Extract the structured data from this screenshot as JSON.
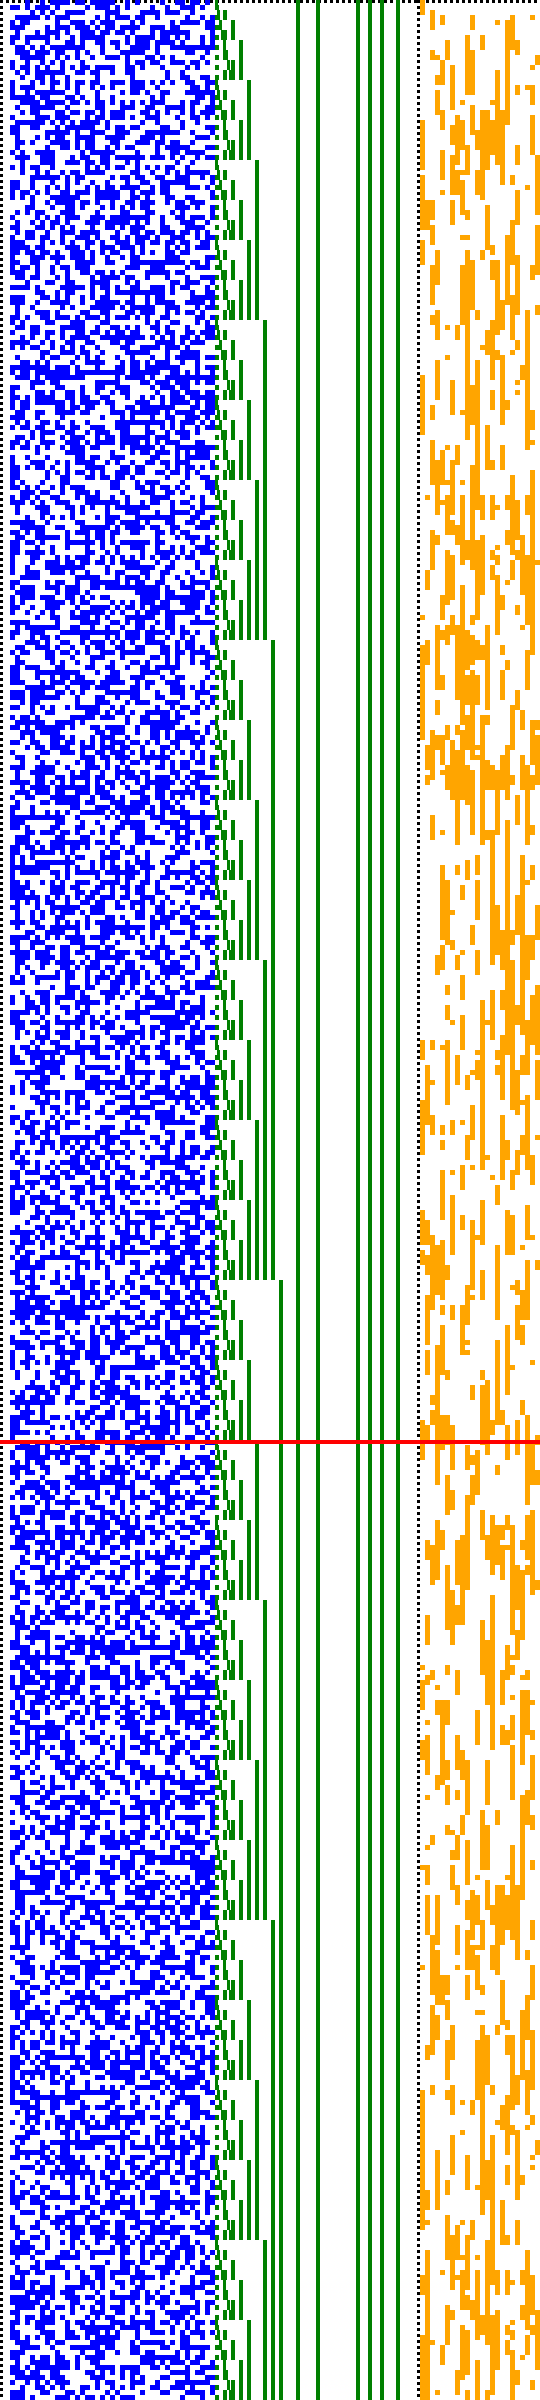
{
  "figure": {
    "kind": "bit-pattern visualization (e.g. cellular automaton / binary counter)",
    "background": "#ffffff",
    "colors": {
      "noise_region": "#0000ff",
      "counter_region": "#008000",
      "noise_region_right": "#ffa500",
      "divider": "#ff0000",
      "frame": "#000000"
    },
    "regions": [
      {
        "name": "left-noise",
        "color_key": "noise_region",
        "density": 0.5
      },
      {
        "name": "middle-counter",
        "color_key": "counter_region"
      },
      {
        "name": "right-noise",
        "color_key": "noise_region_right",
        "density": 0.35
      }
    ],
    "divider": {
      "present": true,
      "orientation": "horizontal"
    },
    "frame": {
      "style": "dotted",
      "sides": [
        "top",
        "left",
        "right-of-counter"
      ]
    }
  }
}
